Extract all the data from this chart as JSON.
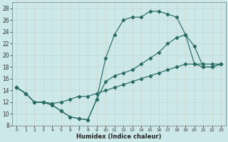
{
  "xlabel": "Humidex (Indice chaleur)",
  "ylabel": "",
  "bg_color": "#cde8e8",
  "line_color": "#2a6b65",
  "grid_color": "#b8d8d8",
  "xlim": [
    -0.5,
    23.5
  ],
  "ylim": [
    8,
    29
  ],
  "xticks": [
    0,
    1,
    2,
    3,
    4,
    5,
    6,
    7,
    8,
    9,
    10,
    11,
    12,
    13,
    14,
    15,
    16,
    17,
    18,
    19,
    20,
    21,
    22,
    23
  ],
  "yticks": [
    8,
    10,
    12,
    14,
    16,
    18,
    20,
    22,
    24,
    26,
    28
  ],
  "line1_x": [
    0,
    1,
    2,
    3,
    4,
    5,
    6,
    7,
    8,
    9,
    10,
    11,
    12,
    13,
    14,
    15,
    16,
    17,
    18,
    19,
    20,
    21,
    22,
    23
  ],
  "line1_y": [
    14.5,
    13.5,
    12.0,
    12.0,
    11.5,
    10.5,
    9.5,
    9.2,
    9.0,
    12.5,
    19.5,
    23.5,
    26.0,
    26.5,
    26.5,
    27.5,
    27.5,
    27.0,
    26.5,
    23.5,
    21.5,
    18.0,
    18.0,
    18.5
  ],
  "line2_x": [
    0,
    1,
    2,
    3,
    4,
    5,
    6,
    7,
    8,
    9,
    10,
    11,
    12,
    13,
    14,
    15,
    16,
    17,
    18,
    19,
    20,
    21,
    22,
    23
  ],
  "line2_y": [
    14.5,
    13.5,
    12.0,
    12.0,
    11.5,
    10.5,
    9.5,
    9.2,
    9.0,
    12.5,
    15.5,
    16.5,
    17.0,
    17.5,
    18.5,
    19.5,
    20.5,
    22.0,
    23.0,
    23.5,
    18.5,
    18.0,
    18.0,
    18.5
  ],
  "line3_x": [
    0,
    1,
    2,
    3,
    4,
    5,
    6,
    7,
    8,
    9,
    10,
    11,
    12,
    13,
    14,
    15,
    16,
    17,
    18,
    19,
    20,
    21,
    22,
    23
  ],
  "line3_y": [
    14.5,
    13.5,
    12.0,
    12.0,
    11.8,
    12.0,
    12.5,
    13.0,
    13.0,
    13.5,
    14.0,
    14.5,
    15.0,
    15.5,
    16.0,
    16.5,
    17.0,
    17.5,
    18.0,
    18.5,
    18.5,
    18.5,
    18.5,
    18.5
  ]
}
